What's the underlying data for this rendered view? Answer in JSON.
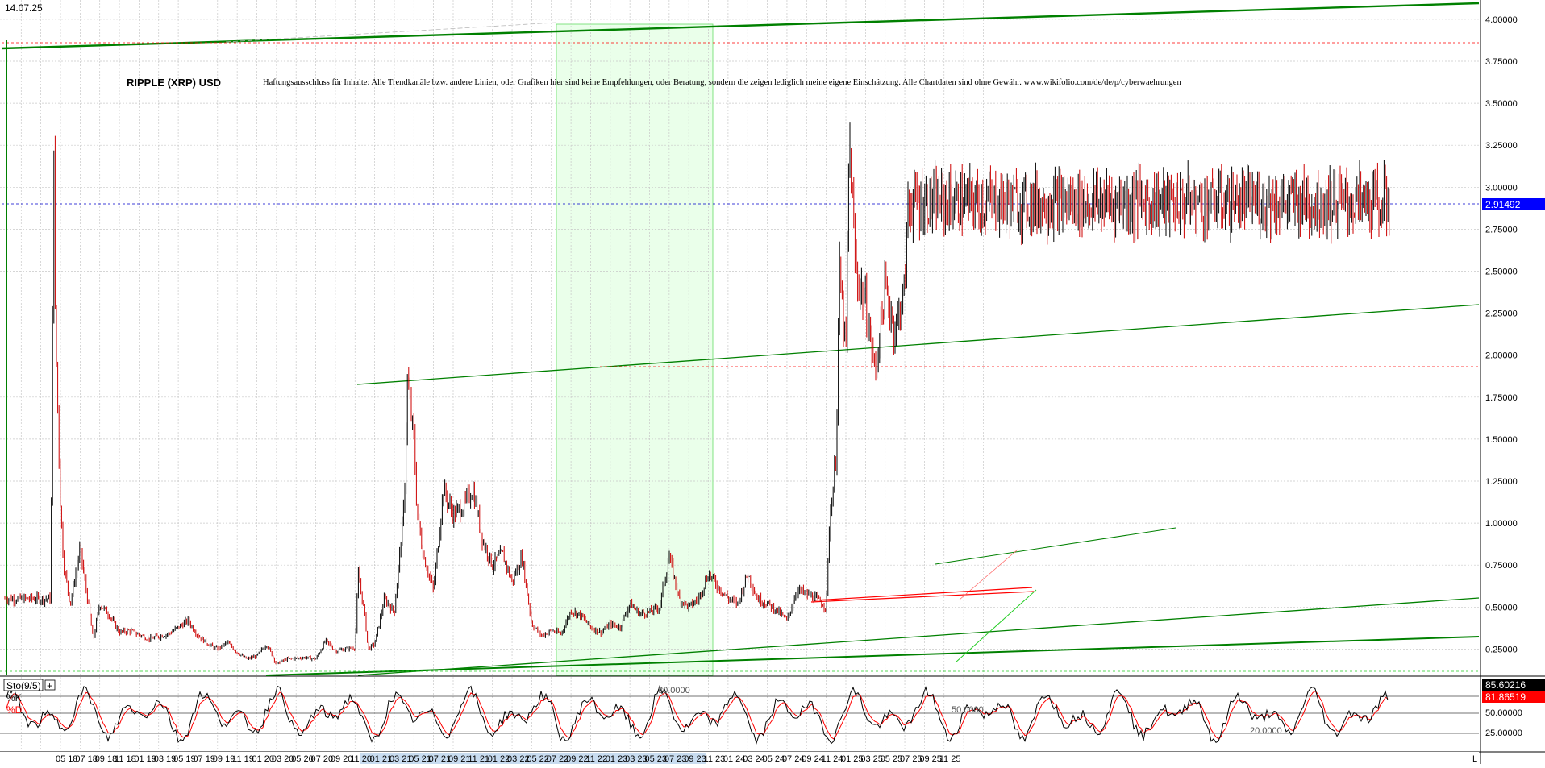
{
  "header": {
    "date": "14.07.25"
  },
  "title": "RIPPLE (XRP) USD",
  "disclaimer": "Haftungsausschluss für Inhalte: Alle Trendkanäle bzw. andere Linien, oder Grafiken hier sind keine Empfehlungen, oder Beratung, sondern die zeigen lediglich meine eigene Einschätzung. Alle Chartdaten sind ohne Gewähr. www.wikifolio.com/de/de/p/cyberwaehrungen",
  "colors": {
    "candle_up": "#000000",
    "candle_down": "#cc0000",
    "trend_green": "#008000",
    "trend_red": "#ff0000",
    "highlight_zone": "#eaffea",
    "price_tag": "#0000ff",
    "k_tag": "#000000",
    "d_tag": "#ff0000",
    "date_axis_highlight": "#c8dcf0"
  },
  "indicator": {
    "name": "Sto(9/5)",
    "k_label": "%K",
    "d_label": "%D",
    "levels": [
      "80.0000",
      "50.0000",
      "20.0000"
    ],
    "axis_labels": [
      "50.00000",
      "25.00000"
    ],
    "k_value": "85.60216",
    "d_value": "81.86519"
  },
  "price_tag": "2.91492",
  "axis_end_label": "L",
  "chart_data": {
    "type": "candlestick",
    "title": "RIPPLE (XRP) USD",
    "y_axis_labels": [
      "4.00000",
      "3.75000",
      "3.50000",
      "3.25000",
      "3.00000",
      "2.75000",
      "2.50000",
      "2.25000",
      "2.00000",
      "1.75000",
      "1.50000",
      "1.25000",
      "1.00000",
      "0.75000",
      "0.50000",
      "0.25000"
    ],
    "ylim": [
      0.0,
      4.0
    ],
    "x_ticks": [
      "05 18",
      "07 18",
      "09 18",
      "11 18",
      "01 19",
      "03 19",
      "05 19",
      "07 19",
      "09 19",
      "11 19",
      "01 20",
      "03 20",
      "05 20",
      "07 20",
      "09 20",
      "11 20",
      "01 21",
      "03 21",
      "05 21",
      "07 21",
      "09 21",
      "11 21",
      "01 22",
      "03 22",
      "05 22",
      "07 22",
      "09 22",
      "11 22",
      "01 23",
      "03 23",
      "05 23",
      "07 23",
      "09 23",
      "11 23",
      "01 24",
      "03 24",
      "05 24",
      "07 24",
      "09 24",
      "11 24",
      "01 25",
      "03 25",
      "05 25",
      "07 25",
      "09 25",
      "11 25"
    ],
    "last_price": 2.91492,
    "price_path": [
      [
        "04 18",
        0.55
      ],
      [
        "04 18",
        3.35
      ],
      [
        "04 18",
        2.5
      ],
      [
        "05 18",
        1.1
      ],
      [
        "05 18",
        0.75
      ],
      [
        "06 18",
        0.52
      ],
      [
        "07 18",
        0.85
      ],
      [
        "08 18",
        0.45
      ],
      [
        "08 18",
        0.3
      ],
      [
        "09 18",
        0.52
      ],
      [
        "10 18",
        0.45
      ],
      [
        "11 18",
        0.35
      ],
      [
        "12 18",
        0.36
      ],
      [
        "02 19",
        0.31
      ],
      [
        "04 19",
        0.34
      ],
      [
        "06 19",
        0.42
      ],
      [
        "07 19",
        0.33
      ],
      [
        "08 19",
        0.28
      ],
      [
        "09 19",
        0.25
      ],
      [
        "10 19",
        0.29
      ],
      [
        "11 19",
        0.23
      ],
      [
        "12 19",
        0.19
      ],
      [
        "01 20",
        0.21
      ],
      [
        "02 20",
        0.28
      ],
      [
        "03 20",
        0.16
      ],
      [
        "04 20",
        0.19
      ],
      [
        "06 20",
        0.2
      ],
      [
        "07 20",
        0.19
      ],
      [
        "08 20",
        0.3
      ],
      [
        "09 20",
        0.24
      ],
      [
        "10 20",
        0.25
      ],
      [
        "11 20",
        0.26
      ],
      [
        "11 20",
        0.7
      ],
      [
        "12 20",
        0.45
      ],
      [
        "12 20",
        0.25
      ],
      [
        "01 21",
        0.28
      ],
      [
        "02 21",
        0.55
      ],
      [
        "03 21",
        0.47
      ],
      [
        "04 21",
        1.1
      ],
      [
        "04 21",
        1.85
      ],
      [
        "05 21",
        1.5
      ],
      [
        "05 21",
        1.05
      ],
      [
        "06 21",
        0.8
      ],
      [
        "07 21",
        0.6
      ],
      [
        "08 21",
        1.2
      ],
      [
        "09 21",
        1.05
      ],
      [
        "10 21",
        1.1
      ],
      [
        "11 21",
        1.2
      ],
      [
        "12 21",
        0.9
      ],
      [
        "01 22",
        0.75
      ],
      [
        "02 22",
        0.82
      ],
      [
        "03 22",
        0.65
      ],
      [
        "04 22",
        0.8
      ],
      [
        "05 22",
        0.4
      ],
      [
        "06 22",
        0.33
      ],
      [
        "07 22",
        0.36
      ],
      [
        "08 22",
        0.34
      ],
      [
        "09 22",
        0.48
      ],
      [
        "10 22",
        0.45
      ],
      [
        "11 22",
        0.38
      ],
      [
        "12 22",
        0.35
      ],
      [
        "01 23",
        0.4
      ],
      [
        "02 23",
        0.38
      ],
      [
        "03 23",
        0.52
      ],
      [
        "04 23",
        0.46
      ],
      [
        "05 23",
        0.47
      ],
      [
        "06 23",
        0.5
      ],
      [
        "07 23",
        0.8
      ],
      [
        "08 23",
        0.55
      ],
      [
        "09 23",
        0.5
      ],
      [
        "10 23",
        0.55
      ],
      [
        "11 23",
        0.7
      ],
      [
        "12 23",
        0.62
      ],
      [
        "01 24",
        0.55
      ],
      [
        "02 24",
        0.52
      ],
      [
        "03 24",
        0.7
      ],
      [
        "04 24",
        0.55
      ],
      [
        "05 24",
        0.52
      ],
      [
        "06 24",
        0.48
      ],
      [
        "07 24",
        0.42
      ],
      [
        "08 24",
        0.6
      ],
      [
        "09 24",
        0.58
      ],
      [
        "10 24",
        0.55
      ],
      [
        "11 24",
        0.5
      ],
      [
        "11 24",
        1.0
      ],
      [
        "12 24",
        1.4
      ],
      [
        "12 24",
        2.5
      ],
      [
        "01 25",
        2.0
      ],
      [
        "01 25",
        3.3
      ],
      [
        "02 25",
        2.5
      ],
      [
        "03 25",
        2.3
      ],
      [
        "04 25",
        1.9
      ],
      [
        "05 25",
        2.4
      ],
      [
        "06 25",
        2.15
      ],
      [
        "07 25",
        2.4
      ],
      [
        "07 25",
        2.91
      ]
    ]
  }
}
